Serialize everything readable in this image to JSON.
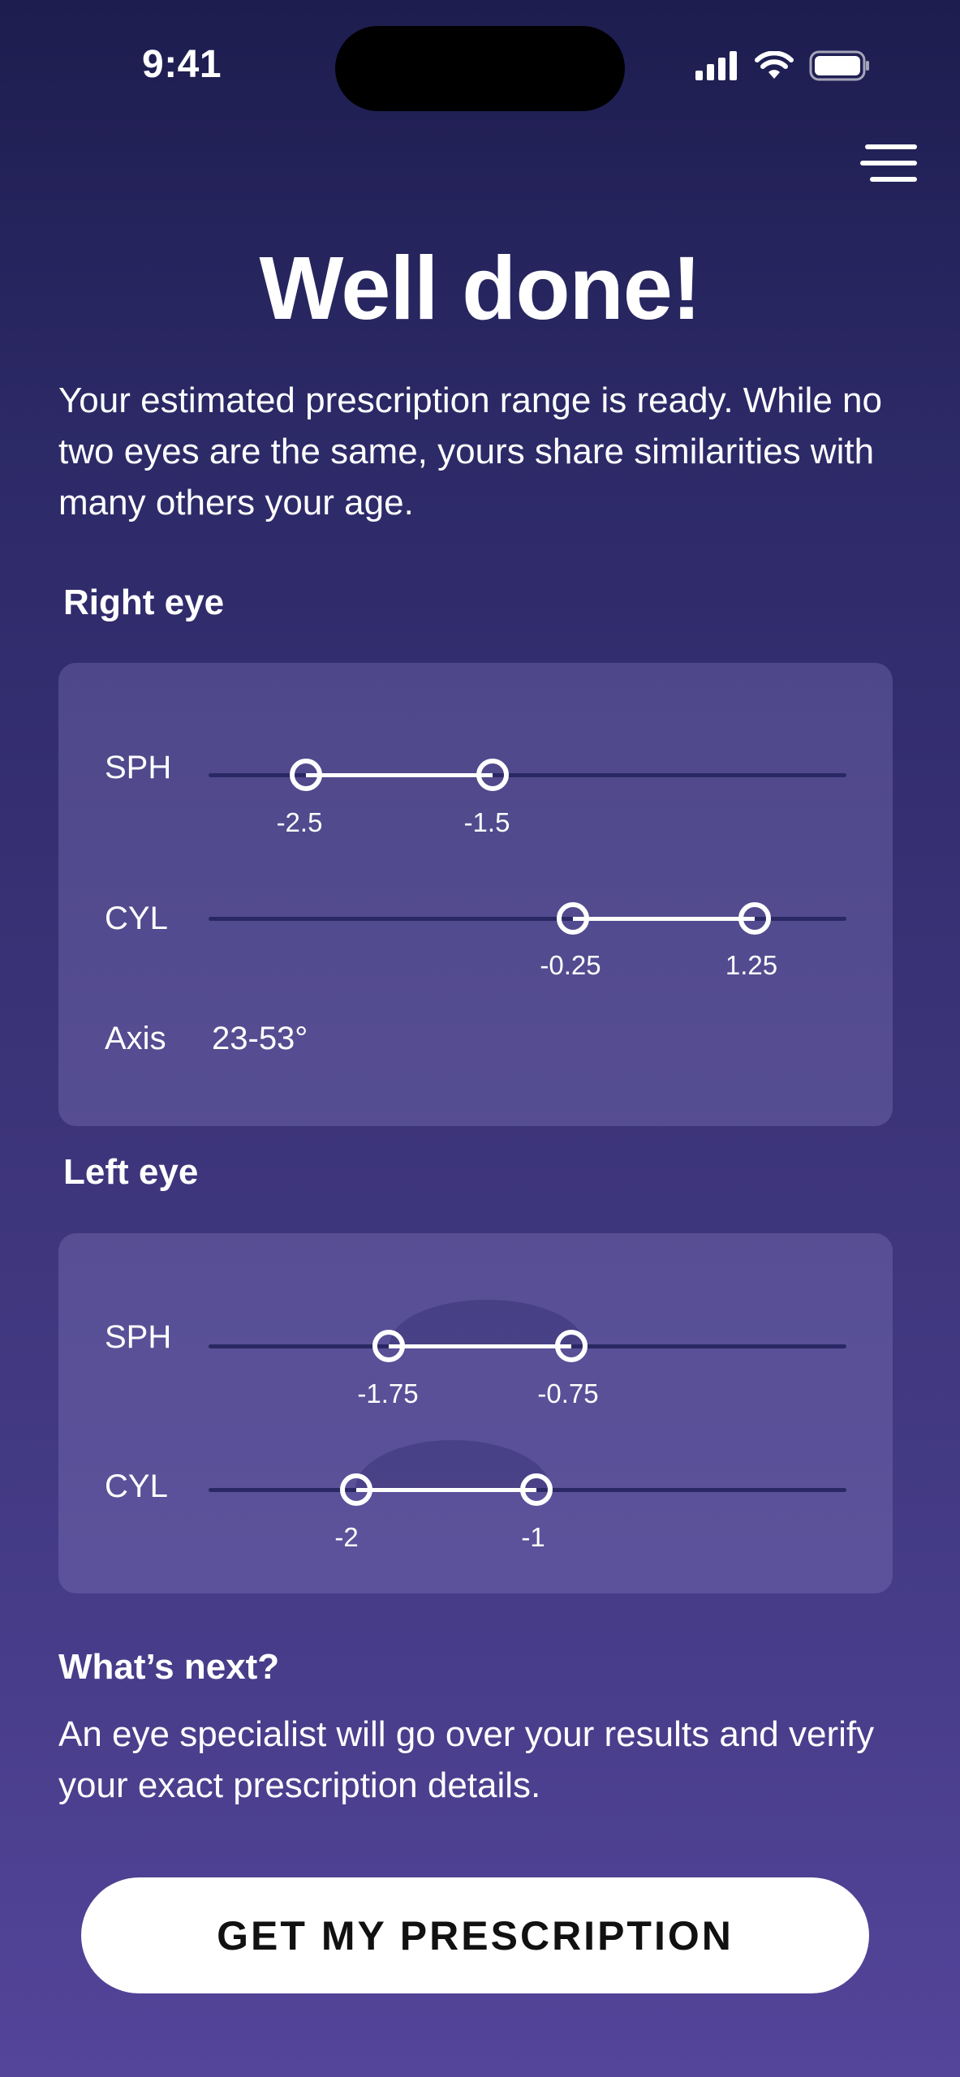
{
  "status_bar": {
    "time": "9:41",
    "icons": [
      "signal-icon",
      "wifi-icon",
      "battery-icon"
    ]
  },
  "header": {
    "menu_icon": "hamburger-menu-icon"
  },
  "title": "Well done!",
  "intro": "Your estimated prescription range is ready. While no two eyes are the same, yours share similarities with many others your age.",
  "right_eye": {
    "label": "Right eye",
    "sph": {
      "label": "SPH",
      "min": "-2.5",
      "max": "-1.5"
    },
    "cyl": {
      "label": "CYL",
      "min": "-0.25",
      "max": "1.25"
    },
    "axis": {
      "label": "Axis",
      "value": "23-53°"
    }
  },
  "left_eye": {
    "label": "Left eye",
    "sph": {
      "label": "SPH",
      "min": "-1.75",
      "max": "-0.75"
    },
    "cyl": {
      "label": "CYL",
      "min": "-2",
      "max": "-1"
    }
  },
  "next": {
    "title": "What’s next?",
    "text": "An eye specialist will go over your results and verify your exact prescription details."
  },
  "cta": {
    "label": "GET MY PRESCRIPTION"
  },
  "colors": {
    "background_top": "#1d1d4f",
    "background_bottom": "#54449a",
    "card": "#5a4f8c",
    "track": "#2a2864",
    "accent": "#ffffff"
  }
}
